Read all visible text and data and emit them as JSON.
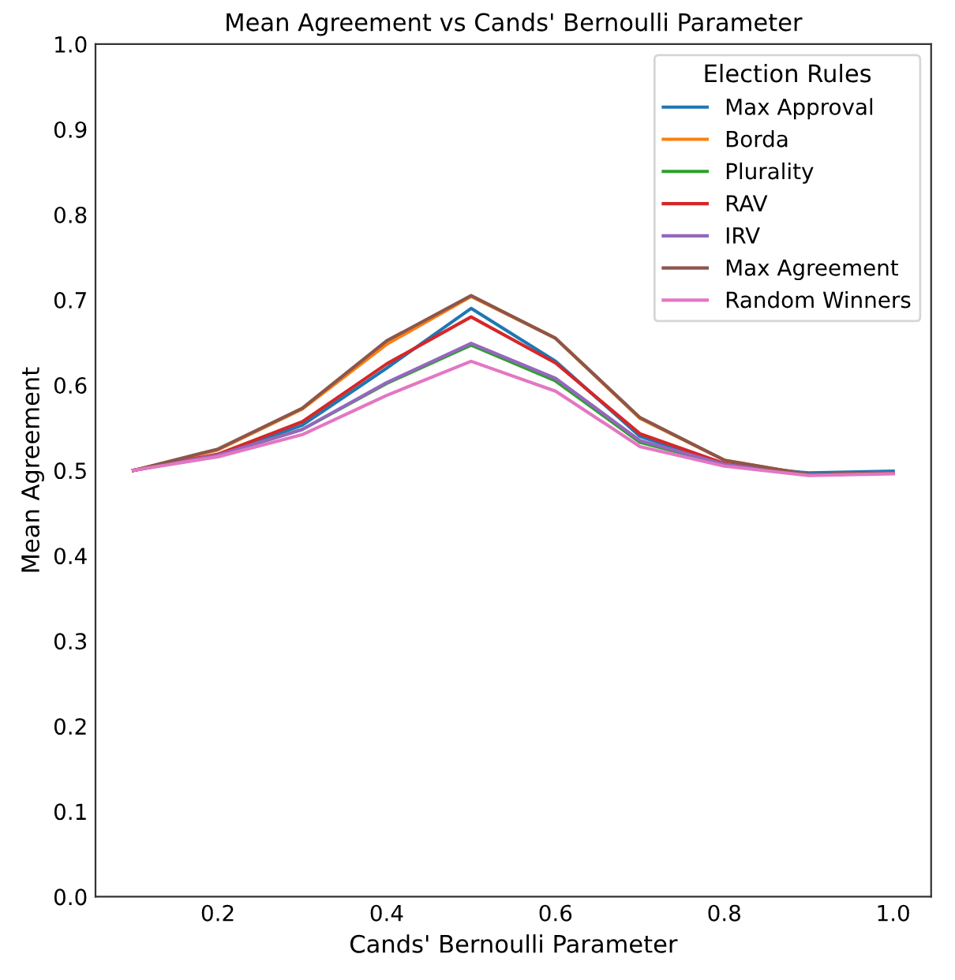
{
  "chart_data": {
    "type": "line",
    "title": "Mean Agreement vs Cands' Bernoulli Parameter",
    "xlabel": "Cands' Bernoulli Parameter",
    "ylabel": "Mean Agreement",
    "legend_title": "Election Rules",
    "x": [
      0.1,
      0.2,
      0.3,
      0.4,
      0.5,
      0.6,
      0.7,
      0.8,
      0.9,
      1.0
    ],
    "series": [
      {
        "name": "Max Approval",
        "color": "#1f77b4",
        "values": [
          0.5,
          0.518,
          0.553,
          0.62,
          0.69,
          0.628,
          0.54,
          0.507,
          0.497,
          0.499
        ]
      },
      {
        "name": "Borda",
        "color": "#ff7f0e",
        "values": [
          0.5,
          0.524,
          0.572,
          0.648,
          0.704,
          0.655,
          0.561,
          0.512,
          0.495,
          0.497
        ]
      },
      {
        "name": "Plurality",
        "color": "#2ca02c",
        "values": [
          0.5,
          0.518,
          0.548,
          0.602,
          0.647,
          0.605,
          0.533,
          0.507,
          0.495,
          0.497
        ]
      },
      {
        "name": "RAV",
        "color": "#d62728",
        "values": [
          0.5,
          0.519,
          0.557,
          0.625,
          0.68,
          0.626,
          0.543,
          0.508,
          0.495,
          0.497
        ]
      },
      {
        "name": "IRV",
        "color": "#9467bd",
        "values": [
          0.5,
          0.518,
          0.548,
          0.603,
          0.649,
          0.608,
          0.535,
          0.507,
          0.495,
          0.497
        ]
      },
      {
        "name": "Max Agreement",
        "color": "#8c564b",
        "values": [
          0.5,
          0.525,
          0.573,
          0.652,
          0.705,
          0.655,
          0.562,
          0.512,
          0.495,
          0.497
        ]
      },
      {
        "name": "Random Winners",
        "color": "#e377c2",
        "values": [
          0.5,
          0.516,
          0.542,
          0.588,
          0.628,
          0.593,
          0.528,
          0.505,
          0.494,
          0.496
        ]
      }
    ],
    "xlim": [
      0.055,
      1.045
    ],
    "xticks": [
      {
        "value": 0.2,
        "label": "0.2"
      },
      {
        "value": 0.4,
        "label": "0.4"
      },
      {
        "value": 0.6,
        "label": "0.6"
      },
      {
        "value": 0.8,
        "label": "0.8"
      },
      {
        "value": 1.0,
        "label": "1.0"
      }
    ],
    "ylim": [
      0,
      1
    ],
    "yticks": [
      {
        "value": 0,
        "label": "0.0"
      },
      {
        "value": 0.1,
        "label": "0.1"
      },
      {
        "value": 0.2,
        "label": "0.2"
      },
      {
        "value": 0.3,
        "label": "0.3"
      },
      {
        "value": 0.4,
        "label": "0.4"
      },
      {
        "value": 0.5,
        "label": "0.5"
      },
      {
        "value": 0.6,
        "label": "0.6"
      },
      {
        "value": 0.7,
        "label": "0.7"
      },
      {
        "value": 0.8,
        "label": "0.8"
      },
      {
        "value": 0.9,
        "label": "0.9"
      },
      {
        "value": 1,
        "label": "1.0"
      }
    ],
    "grid": false,
    "legend": "top right"
  }
}
